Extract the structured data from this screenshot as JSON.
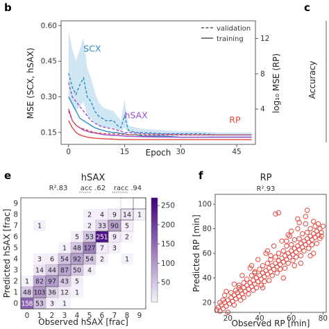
{
  "panels": {
    "b": "b",
    "c": "c",
    "e": "e",
    "f": "f"
  },
  "chart_data": [
    {
      "id": "b",
      "type": "line",
      "xlabel": "Epoch",
      "ylabel": "MSE (SCX, hSAX)",
      "ylabel_right": "log₁₀ MSE (RP)",
      "x_ticks": [
        "0",
        "15",
        "30",
        "45"
      ],
      "x_tick_values": [
        0,
        15,
        30,
        45
      ],
      "xlim": [
        -2,
        50
      ],
      "y_ticks": [
        "0.15",
        "0.30",
        "0.45",
        "0.60"
      ],
      "y_tick_values": [
        0.15,
        0.3,
        0.45,
        0.6
      ],
      "ylim": [
        0.1,
        0.62
      ],
      "y_right_ticks": [
        "4",
        "8",
        "12"
      ],
      "y_right_tick_values": [
        4,
        8,
        12
      ],
      "ylim_right": [
        0,
        14
      ],
      "legend": [
        {
          "label": "validation",
          "style": "dashed"
        },
        {
          "label": "training",
          "style": "solid"
        }
      ],
      "legend_position": "top-right",
      "annotations": [
        {
          "text": "SCX",
          "color": "#2b8cc4",
          "x": 4,
          "y": 0.49
        },
        {
          "text": "hSAX",
          "color": "#9b4dca",
          "x": 15,
          "y": 0.21
        },
        {
          "text": "RP",
          "color": "#e2473f",
          "x": 43,
          "y": 0.19
        }
      ],
      "x": [
        0,
        1,
        2,
        3,
        4,
        5,
        6,
        7,
        8,
        9,
        10,
        12,
        13,
        14,
        15,
        16,
        18,
        20,
        25,
        30,
        35,
        40,
        45,
        49
      ],
      "series": [
        {
          "color": "#2b8cc4",
          "style": "dashed",
          "band": true,
          "values": [
            0.4,
            0.34,
            0.31,
            0.35,
            0.38,
            0.3,
            0.28,
            0.24,
            0.22,
            0.21,
            0.2,
            0.2,
            0.18,
            0.17,
            0.22,
            0.16,
            0.15,
            0.15,
            0.145,
            0.145,
            0.145,
            0.14,
            0.14,
            0.14
          ],
          "band_low": [
            0.3,
            0.26,
            0.24,
            0.26,
            0.28,
            0.22,
            0.21,
            0.19,
            0.18,
            0.17,
            0.17,
            0.17,
            0.16,
            0.155,
            0.17,
            0.15,
            0.14,
            0.14,
            0.135,
            0.135,
            0.135,
            0.13,
            0.13,
            0.13
          ],
          "band_high": [
            0.58,
            0.5,
            0.45,
            0.5,
            0.55,
            0.42,
            0.38,
            0.32,
            0.28,
            0.26,
            0.25,
            0.24,
            0.22,
            0.2,
            0.29,
            0.18,
            0.17,
            0.165,
            0.16,
            0.155,
            0.155,
            0.15,
            0.15,
            0.15
          ]
        },
        {
          "color": "#2b8cc4",
          "style": "solid",
          "values": [
            0.3,
            0.27,
            0.24,
            0.21,
            0.2,
            0.19,
            0.18,
            0.17,
            0.165,
            0.16,
            0.155,
            0.15,
            0.15,
            0.145,
            0.145,
            0.14,
            0.14,
            0.135,
            0.135,
            0.13,
            0.13,
            0.13,
            0.13,
            0.13
          ]
        },
        {
          "color": "#9b4dca",
          "style": "dashed",
          "values": [
            0.36,
            0.3,
            0.28,
            0.26,
            0.24,
            0.22,
            0.2,
            0.19,
            0.18,
            0.175,
            0.17,
            0.165,
            0.16,
            0.155,
            0.15,
            0.15,
            0.148,
            0.145,
            0.143,
            0.142,
            0.14,
            0.14,
            0.14,
            0.14
          ]
        },
        {
          "color": "#9b4dca",
          "style": "solid",
          "values": [
            0.25,
            0.2,
            0.18,
            0.17,
            0.16,
            0.155,
            0.15,
            0.148,
            0.145,
            0.142,
            0.14,
            0.138,
            0.137,
            0.136,
            0.135,
            0.134,
            0.133,
            0.132,
            0.131,
            0.13,
            0.13,
            0.13,
            0.13,
            0.13
          ]
        },
        {
          "color": "#e2473f",
          "style": "dashed",
          "values": [
            0.24,
            0.2,
            0.18,
            0.17,
            0.165,
            0.16,
            0.155,
            0.15,
            0.148,
            0.146,
            0.145,
            0.144,
            0.143,
            0.142,
            0.142,
            0.141,
            0.14,
            0.14,
            0.14,
            0.14,
            0.14,
            0.14,
            0.14,
            0.14
          ]
        },
        {
          "color": "#e2473f",
          "style": "solid",
          "values": [
            0.2,
            0.17,
            0.15,
            0.14,
            0.135,
            0.13,
            0.128,
            0.126,
            0.125,
            0.124,
            0.123,
            0.122,
            0.121,
            0.12,
            0.12,
            0.12,
            0.12,
            0.12,
            0.12,
            0.12,
            0.12,
            0.12,
            0.12,
            0.12
          ]
        }
      ]
    },
    {
      "id": "c",
      "type": "line",
      "ylabel": "Accuracy",
      "partial": true
    },
    {
      "id": "e",
      "type": "heatmap",
      "title": "hSAX",
      "stats": [
        {
          "text": "R².83"
        },
        {
          "text": "acc .62",
          "underline": "acc"
        },
        {
          "text": "racc .94",
          "underline": "racc"
        }
      ],
      "xlabel": "Observed hSAX [frac]",
      "ylabel": "Predicted hSAX [frac]",
      "x_ticks": [
        "0",
        "1",
        "2",
        "3",
        "4",
        "5",
        "6",
        "7",
        "8",
        "9"
      ],
      "y_ticks": [
        "0",
        "1",
        "2",
        "3",
        "4",
        "5",
        "6",
        "7",
        "8",
        "9"
      ],
      "colorbar": {
        "ticks": [
          "50",
          "100",
          "150",
          "200",
          "250"
        ],
        "tick_values": [
          50,
          100,
          150,
          200,
          250
        ],
        "vmin": 0,
        "vmax": 270
      },
      "cells": [
        {
          "x": 0,
          "y": 0,
          "v": 158
        },
        {
          "x": 1,
          "y": 0,
          "v": 53
        },
        {
          "x": 2,
          "y": 0,
          "v": 3
        },
        {
          "x": 3,
          "y": 0,
          "v": 1
        },
        {
          "x": 0,
          "y": 1,
          "v": 48
        },
        {
          "x": 1,
          "y": 1,
          "v": 103
        },
        {
          "x": 2,
          "y": 1,
          "v": 36
        },
        {
          "x": 3,
          "y": 1,
          "v": 12
        },
        {
          "x": 4,
          "y": 1,
          "v": 1
        },
        {
          "x": 0,
          "y": 2,
          "v": 1
        },
        {
          "x": 1,
          "y": 2,
          "v": 82
        },
        {
          "x": 2,
          "y": 2,
          "v": 97
        },
        {
          "x": 3,
          "y": 2,
          "v": 43
        },
        {
          "x": 4,
          "y": 2,
          "v": 5
        },
        {
          "x": 1,
          "y": 3,
          "v": 14
        },
        {
          "x": 2,
          "y": 3,
          "v": 44
        },
        {
          "x": 3,
          "y": 3,
          "v": 87
        },
        {
          "x": 4,
          "y": 3,
          "v": 50
        },
        {
          "x": 5,
          "y": 3,
          "v": 4
        },
        {
          "x": 1,
          "y": 4,
          "v": 3
        },
        {
          "x": 2,
          "y": 4,
          "v": 6
        },
        {
          "x": 3,
          "y": 4,
          "v": 54
        },
        {
          "x": 4,
          "y": 4,
          "v": 92
        },
        {
          "x": 5,
          "y": 4,
          "v": 54
        },
        {
          "x": 6,
          "y": 4,
          "v": 2
        },
        {
          "x": 8,
          "y": 4,
          "v": 1
        },
        {
          "x": 3,
          "y": 5,
          "v": 1
        },
        {
          "x": 4,
          "y": 5,
          "v": 48
        },
        {
          "x": 5,
          "y": 5,
          "v": 127
        },
        {
          "x": 6,
          "y": 5,
          "v": 7
        },
        {
          "x": 7,
          "y": 5,
          "v": 3
        },
        {
          "x": 4,
          "y": 6,
          "v": 5
        },
        {
          "x": 5,
          "y": 6,
          "v": 53
        },
        {
          "x": 6,
          "y": 6,
          "v": 251
        },
        {
          "x": 7,
          "y": 6,
          "v": 9
        },
        {
          "x": 8,
          "y": 6,
          "v": 2
        },
        {
          "x": 1,
          "y": 7,
          "v": 1
        },
        {
          "x": 5,
          "y": 7,
          "v": 2
        },
        {
          "x": 6,
          "y": 7,
          "v": 33
        },
        {
          "x": 7,
          "y": 7,
          "v": 90
        },
        {
          "x": 8,
          "y": 7,
          "v": 5
        },
        {
          "x": 5,
          "y": 8,
          "v": 2
        },
        {
          "x": 6,
          "y": 8,
          "v": 4
        },
        {
          "x": 7,
          "y": 8,
          "v": 9
        },
        {
          "x": 8,
          "y": 8,
          "v": 14
        },
        {
          "x": 9,
          "y": 8,
          "v": 1
        }
      ]
    },
    {
      "id": "f",
      "type": "scatter",
      "title": "RP",
      "stats": "R².93",
      "xlabel": "Observed RP [min]",
      "ylabel": "Predicted RP [min]",
      "x_ticks": [
        "20",
        "40",
        "60",
        "80"
      ],
      "x_tick_values": [
        20,
        40,
        60,
        80
      ],
      "y_ticks": [
        "20",
        "40",
        "60",
        "80",
        "100"
      ],
      "y_tick_values": [
        20,
        40,
        60,
        80,
        100
      ],
      "xlim": [
        12,
        82
      ],
      "ylim": [
        12,
        108
      ],
      "color": "#e2473f",
      "points": [
        [
          13,
          14
        ],
        [
          14,
          16
        ],
        [
          15,
          13
        ],
        [
          16,
          18
        ],
        [
          17,
          15
        ],
        [
          18,
          20
        ],
        [
          19,
          17
        ],
        [
          20,
          22
        ],
        [
          21,
          19
        ],
        [
          22,
          24
        ],
        [
          23,
          21
        ],
        [
          24,
          26
        ],
        [
          25,
          23
        ],
        [
          26,
          28
        ],
        [
          27,
          25
        ],
        [
          28,
          30
        ],
        [
          29,
          27
        ],
        [
          30,
          32
        ],
        [
          31,
          29
        ],
        [
          32,
          34
        ],
        [
          33,
          31
        ],
        [
          34,
          36
        ],
        [
          35,
          33
        ],
        [
          36,
          38
        ],
        [
          37,
          35
        ],
        [
          38,
          40
        ],
        [
          39,
          37
        ],
        [
          40,
          42
        ],
        [
          41,
          39
        ],
        [
          42,
          44
        ],
        [
          43,
          41
        ],
        [
          44,
          46
        ],
        [
          45,
          43
        ],
        [
          46,
          48
        ],
        [
          47,
          45
        ],
        [
          48,
          50
        ],
        [
          49,
          47
        ],
        [
          50,
          52
        ],
        [
          51,
          49
        ],
        [
          52,
          54
        ],
        [
          53,
          51
        ],
        [
          54,
          56
        ],
        [
          55,
          53
        ],
        [
          56,
          58
        ],
        [
          57,
          55
        ],
        [
          58,
          60
        ],
        [
          59,
          57
        ],
        [
          60,
          62
        ],
        [
          61,
          59
        ],
        [
          62,
          64
        ],
        [
          63,
          61
        ],
        [
          64,
          66
        ],
        [
          65,
          63
        ],
        [
          66,
          68
        ],
        [
          67,
          65
        ],
        [
          68,
          70
        ],
        [
          69,
          67
        ],
        [
          70,
          72
        ],
        [
          71,
          69
        ],
        [
          72,
          74
        ],
        [
          73,
          71
        ],
        [
          74,
          76
        ],
        [
          75,
          73
        ],
        [
          76,
          78
        ],
        [
          77,
          75
        ],
        [
          78,
          80
        ],
        [
          79,
          77
        ],
        [
          80,
          82
        ],
        [
          25,
          30
        ],
        [
          30,
          36
        ],
        [
          35,
          42
        ],
        [
          40,
          47
        ],
        [
          45,
          52
        ],
        [
          50,
          57
        ],
        [
          55,
          62
        ],
        [
          60,
          67
        ],
        [
          65,
          72
        ],
        [
          70,
          77
        ],
        [
          75,
          82
        ],
        [
          28,
          22
        ],
        [
          33,
          27
        ],
        [
          38,
          32
        ],
        [
          43,
          37
        ],
        [
          48,
          42
        ],
        [
          53,
          47
        ],
        [
          58,
          52
        ],
        [
          63,
          57
        ],
        [
          68,
          62
        ],
        [
          73,
          67
        ],
        [
          78,
          72
        ],
        [
          22,
          28
        ],
        [
          27,
          34
        ],
        [
          32,
          39
        ],
        [
          37,
          45
        ],
        [
          42,
          50
        ],
        [
          47,
          55
        ],
        [
          52,
          60
        ],
        [
          57,
          66
        ],
        [
          62,
          71
        ],
        [
          67,
          76
        ],
        [
          72,
          80
        ],
        [
          77,
          84
        ],
        [
          50,
          92
        ],
        [
          52,
          93
        ],
        [
          69,
          90
        ],
        [
          64,
          88
        ],
        [
          58,
          75
        ],
        [
          45,
          62
        ],
        [
          35,
          50
        ],
        [
          55,
          40
        ],
        [
          66,
          52
        ],
        [
          74,
          60
        ],
        [
          20,
          12
        ],
        [
          18,
          26
        ],
        [
          24,
          18
        ],
        [
          30,
          24
        ],
        [
          36,
          30
        ],
        [
          41,
          34
        ],
        [
          46,
          38
        ],
        [
          51,
          44
        ],
        [
          56,
          48
        ],
        [
          61,
          54
        ],
        [
          66,
          58
        ],
        [
          71,
          64
        ],
        [
          76,
          68
        ],
        [
          79,
          74
        ],
        [
          44,
          60
        ],
        [
          49,
          66
        ],
        [
          54,
          70
        ],
        [
          59,
          74
        ],
        [
          64,
          80
        ],
        [
          69,
          84
        ],
        [
          74,
          86
        ],
        [
          39,
          55
        ],
        [
          34,
          48
        ],
        [
          29,
          42
        ],
        [
          24,
          35
        ],
        [
          19,
          29
        ],
        [
          15,
          20
        ],
        [
          70,
          95
        ],
        [
          60,
          78
        ],
        [
          65,
          85
        ],
        [
          57,
          70
        ],
        [
          47,
          58
        ],
        [
          37,
          44
        ],
        [
          27,
          32
        ],
        [
          17,
          22
        ],
        [
          62,
          50
        ],
        [
          72,
          58
        ],
        [
          42,
          32
        ]
      ]
    }
  ]
}
